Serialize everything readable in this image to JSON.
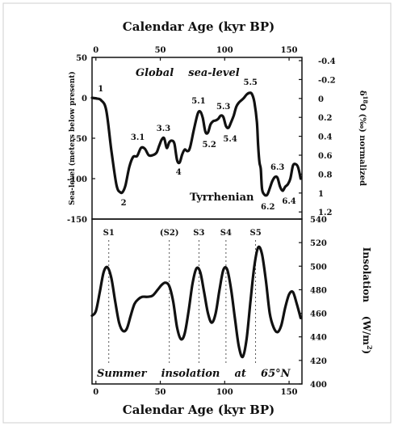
{
  "chart_data": [
    {
      "type": "line",
      "title": "Calendar Age (kyr BP)",
      "xlabel": "Calendar Age (kyr BP)",
      "ylabel": "Sea-level (meters below present)",
      "y2label": "δ18O (‰) normalized",
      "inner_title": "Global sea-level",
      "annotation": "Tyrrhenian",
      "xlim": [
        -3,
        160
      ],
      "xticks": [
        "0",
        "50",
        "100",
        "150"
      ],
      "ylim": [
        -150,
        50
      ],
      "yticks": [
        "50",
        "0",
        "-50",
        "-100",
        "-150"
      ],
      "y2ticks": [
        "-0.4",
        "-0.2",
        "0",
        "0.2",
        "0.4",
        "0.6",
        "0.8",
        "1",
        "1.2"
      ],
      "grid": false,
      "series": [
        {
          "x": [
            -3,
            1,
            4,
            8,
            12,
            16,
            19,
            21,
            23,
            26,
            29,
            32,
            35,
            38,
            41,
            44,
            47,
            49,
            51,
            53,
            55,
            57,
            59,
            61,
            63,
            65,
            67,
            69,
            71,
            73,
            76,
            79,
            81,
            83,
            85,
            87,
            89,
            91,
            93,
            95,
            97,
            99,
            101,
            103,
            105,
            107,
            109,
            111,
            113,
            115,
            117,
            119,
            121,
            123,
            125,
            126,
            127,
            128,
            129,
            131,
            133,
            135,
            137,
            139,
            141,
            143,
            145,
            147,
            149,
            151,
            153,
            155,
            157,
            159
          ],
          "y": [
            0,
            -1,
            -3,
            -15,
            -65,
            -108,
            -117,
            -116,
            -108,
            -85,
            -73,
            -72,
            -62,
            -63,
            -71,
            -71,
            -68,
            -60,
            -52,
            -50,
            -62,
            -55,
            -53,
            -57,
            -77,
            -80,
            -70,
            -64,
            -66,
            -62,
            -40,
            -20,
            -17,
            -25,
            -42,
            -43,
            -33,
            -29,
            -28,
            -26,
            -22,
            -24,
            -35,
            -37,
            -30,
            -22,
            -11,
            -6,
            -3,
            0,
            4,
            6,
            5,
            -5,
            -30,
            -60,
            -80,
            -88,
            -113,
            -120,
            -120,
            -112,
            -103,
            -98,
            -99,
            -110,
            -115,
            -110,
            -107,
            -100,
            -84,
            -82,
            -86,
            -100
          ]
        }
      ],
      "point_labels": [
        {
          "label": "1",
          "x": 0,
          "y": 0
        },
        {
          "label": "2",
          "x": 19,
          "y": -117
        },
        {
          "label": "3.1",
          "x": 35,
          "y": -62
        },
        {
          "label": "3.3",
          "x": 55,
          "y": -51
        },
        {
          "label": "4",
          "x": 63,
          "y": -77
        },
        {
          "label": "5.1",
          "x": 81,
          "y": -17
        },
        {
          "label": "5.2",
          "x": 88,
          "y": -43
        },
        {
          "label": "5.3",
          "x": 99,
          "y": -24
        },
        {
          "label": "5.4",
          "x": 103,
          "y": -38
        },
        {
          "label": "5.5",
          "x": 120,
          "y": 6
        },
        {
          "label": "6.2",
          "x": 131,
          "y": -122
        },
        {
          "label": "6.3",
          "x": 141,
          "y": -99
        },
        {
          "label": "6.4",
          "x": 145,
          "y": -115
        }
      ]
    },
    {
      "type": "line",
      "title": "",
      "xlabel": "Calendar Age (kyr BP)",
      "ylabel": "Insolation (W/m2)",
      "inner_title": "Summer insolation at 65°N",
      "xlim": [
        -3,
        160
      ],
      "xticks": [
        "0",
        "50",
        "100",
        "150"
      ],
      "ylim": [
        400,
        540
      ],
      "yticks": [
        "540",
        "520",
        "500",
        "480",
        "460",
        "440",
        "420",
        "400"
      ],
      "grid": false,
      "series": [
        {
          "x": [
            -3,
            0,
            3,
            6,
            9,
            12,
            15,
            18,
            21,
            24,
            27,
            30,
            33,
            36,
            40,
            44,
            48,
            51,
            54,
            57,
            60,
            63,
            66,
            69,
            72,
            75,
            78,
            81,
            84,
            87,
            90,
            93,
            96,
            99,
            102,
            105,
            108,
            111,
            114,
            117,
            120,
            123,
            126,
            129,
            132,
            135,
            138,
            141,
            144,
            147,
            150,
            153,
            156,
            159
          ],
          "y": [
            458,
            462,
            478,
            495,
            499,
            490,
            470,
            452,
            445,
            447,
            458,
            468,
            472,
            474,
            474,
            475,
            480,
            484,
            486,
            483,
            470,
            448,
            438,
            443,
            462,
            485,
            498,
            495,
            478,
            460,
            452,
            460,
            480,
            497,
            497,
            480,
            455,
            432,
            423,
            438,
            470,
            500,
            516,
            510,
            488,
            460,
            448,
            444,
            450,
            465,
            476,
            478,
            468,
            456
          ]
        }
      ],
      "markers": [
        {
          "label": "S1",
          "x": 10
        },
        {
          "label": "(S2)",
          "x": 57
        },
        {
          "label": "S3",
          "x": 80
        },
        {
          "label": "S4",
          "x": 101
        },
        {
          "label": "S5",
          "x": 124
        }
      ]
    }
  ],
  "labels": {
    "top_axis_title": "Calendar Age (kyr BP)",
    "bottom_axis_title": "Calendar Age (kyr BP)",
    "top_left_ylabel": "Sea-level (meters below present)",
    "top_right_ylabel_sup": "18",
    "top_right_ylabel_rest": "O (‰) normalized",
    "top_right_ylabel_delta": "δ",
    "global_sea_level": "Global    sea-level",
    "tyrrhenian": "Tyrrhenian",
    "insolation_ylabel": "Insolation    (W/m",
    "insolation_ylabel_sup": "2",
    "insolation_ylabel_end": ")",
    "summer_insolation": "Summer    insolation    at    65°N"
  }
}
